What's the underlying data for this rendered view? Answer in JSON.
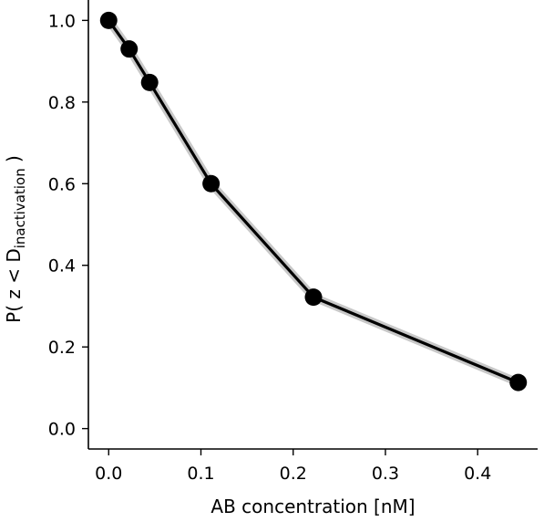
{
  "chart_data": {
    "type": "line",
    "title": "",
    "xlabel": "AB concentration [nM]",
    "ylabel": "P( z < D",
    "ylabel_sub": "inactivation",
    "ylabel_end": " )",
    "xlim": [
      -0.022,
      0.465
    ],
    "ylim": [
      -0.05,
      1.05
    ],
    "xticks": [
      0.0,
      0.1,
      0.2,
      0.3,
      0.4
    ],
    "xtick_labels": [
      "0.0",
      "0.1",
      "0.2",
      "0.3",
      "0.4"
    ],
    "yticks": [
      0.0,
      0.2,
      0.4,
      0.6,
      0.8,
      1.0
    ],
    "ytick_labels": [
      "0.0",
      "0.2",
      "0.4",
      "0.6",
      "0.8",
      "1.0"
    ],
    "grid": false,
    "series": [
      {
        "x": [
          0.0,
          0.0222,
          0.0444,
          0.111,
          0.222,
          0.444
        ],
        "y": [
          1.0,
          0.93,
          0.848,
          0.6,
          0.322,
          0.113
        ],
        "color": "#000000",
        "band_color": "#9a9a9a",
        "marker": "circle"
      }
    ]
  }
}
